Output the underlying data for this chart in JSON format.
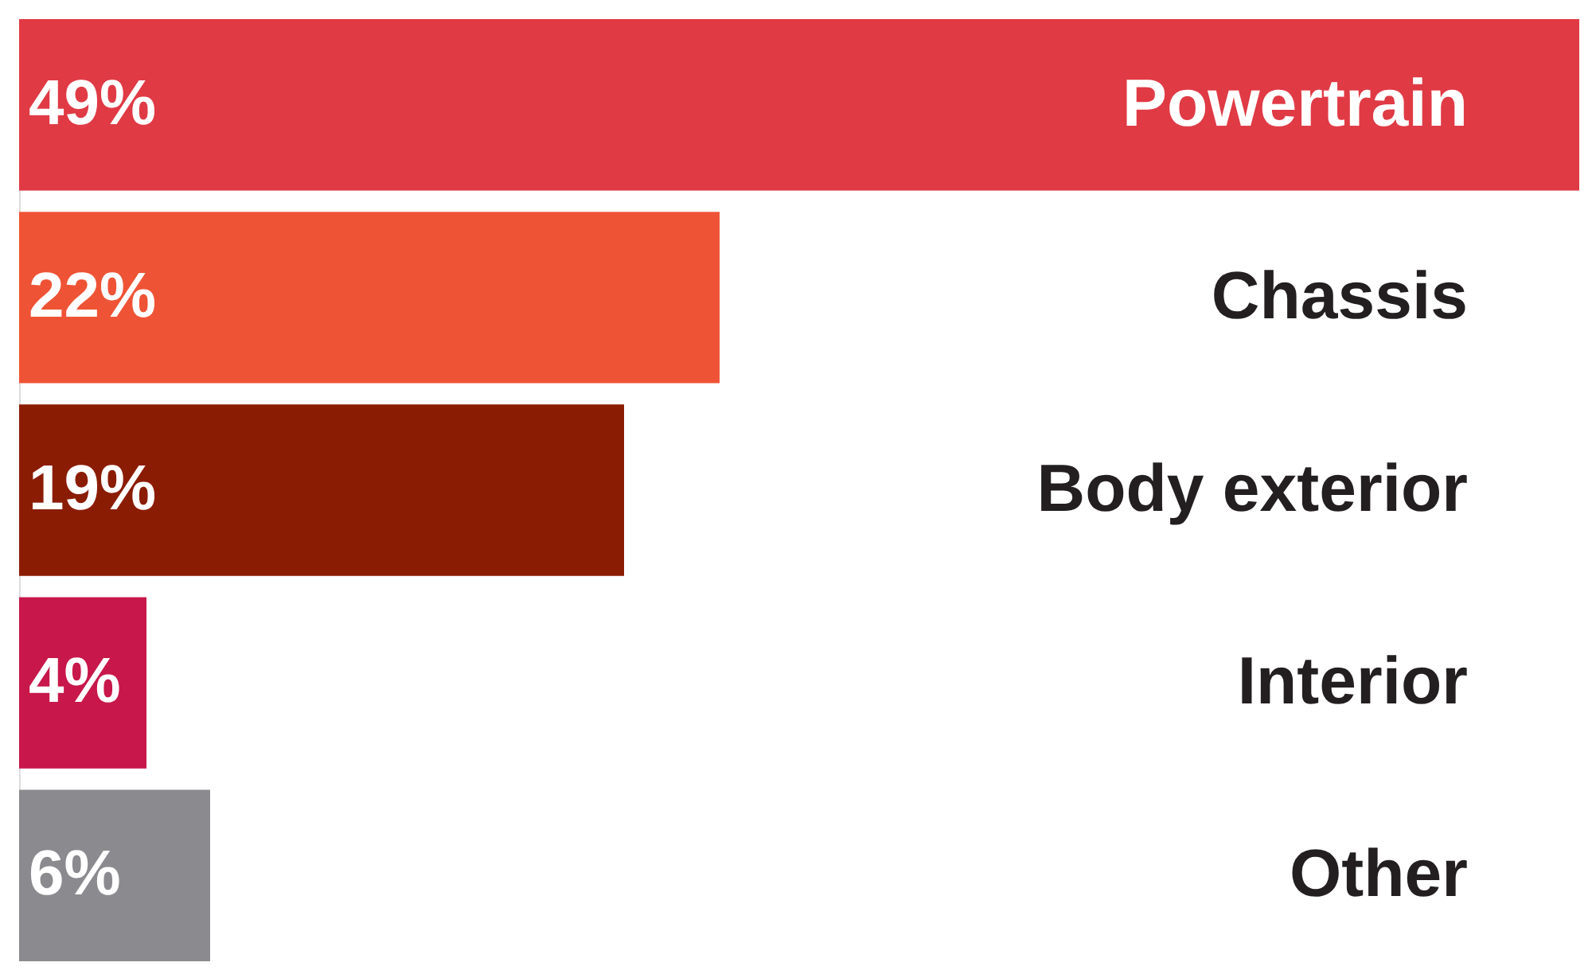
{
  "chart_data": {
    "type": "bar",
    "orientation": "horizontal",
    "categories": [
      "Powertrain",
      "Chassis",
      "Body exterior",
      "Interior",
      "Other"
    ],
    "values": [
      49,
      22,
      19,
      4,
      6
    ],
    "value_labels": [
      "49%",
      "22%",
      "19%",
      "4%",
      "6%"
    ],
    "colors": [
      "#e03a45",
      "#ef5335",
      "#8b1c04",
      "#c8174a",
      "#8b8b8f"
    ],
    "tick_labels": false
  }
}
